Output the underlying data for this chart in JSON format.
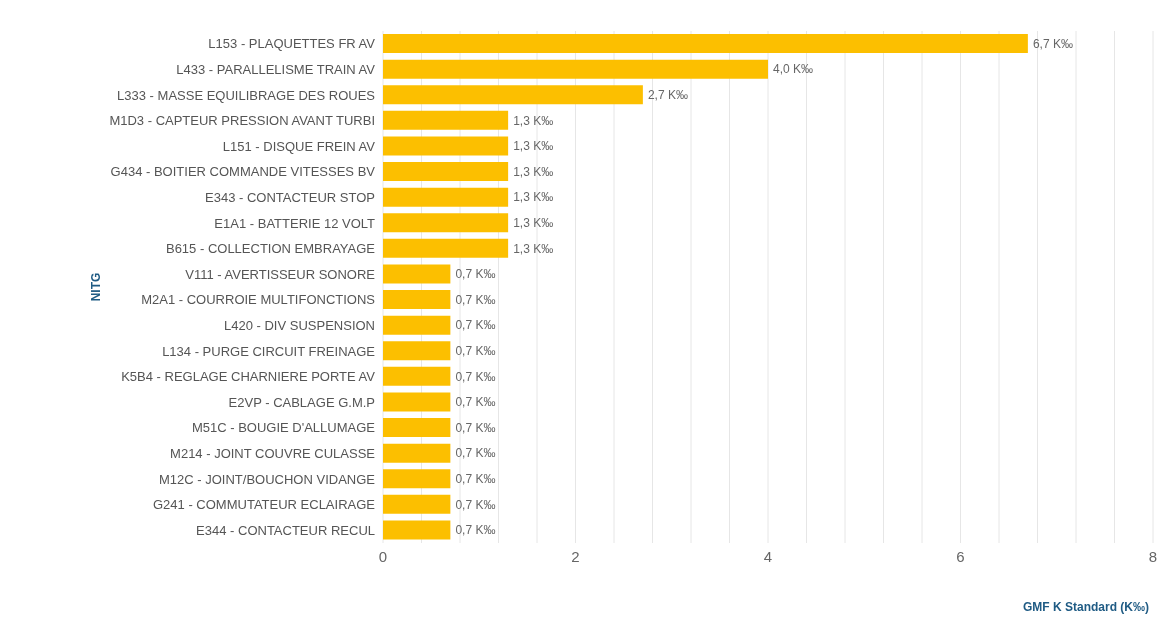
{
  "chart_data": {
    "type": "bar",
    "orientation": "horizontal",
    "xlabel": "GMF K Standard (K‰)",
    "ylabel": "NITG",
    "categories": [
      "L153 - PLAQUETTES FR AV",
      "L433 - PARALLELISME TRAIN AV",
      "L333 - MASSE EQUILIBRAGE DES ROUES",
      "M1D3 - CAPTEUR PRESSION AVANT TURBI",
      "L151 - DISQUE FREIN AV",
      "G434 - BOITIER COMMANDE VITESSES BV",
      "E343 - CONTACTEUR  STOP",
      "E1A1 - BATTERIE 12 VOLT",
      "B615 - COLLECTION EMBRAYAGE",
      "V111 - AVERTISSEUR SONORE",
      "M2A1 - COURROIE MULTIFONCTIONS",
      "L420 - DIV SUSPENSION",
      "L134 - PURGE CIRCUIT FREINAGE",
      "K5B4 - REGLAGE CHARNIERE PORTE AV",
      "E2VP - CABLAGE G.M.P",
      "M51C - BOUGIE D'ALLUMAGE",
      "M214 - JOINT COUVRE CULASSE",
      "M12C - JOINT/BOUCHON VIDANGE",
      "G241 - COMMUTATEUR ECLAIRAGE",
      "E344 - CONTACTEUR RECUL"
    ],
    "values": [
      6.7,
      4.0,
      2.7,
      1.3,
      1.3,
      1.3,
      1.3,
      1.3,
      1.3,
      0.7,
      0.7,
      0.7,
      0.7,
      0.7,
      0.7,
      0.7,
      0.7,
      0.7,
      0.7,
      0.7
    ],
    "value_labels": [
      "6,7 K‰",
      "4,0 K‰",
      "2,7 K‰",
      "1,3 K‰",
      "1,3 K‰",
      "1,3 K‰",
      "1,3 K‰",
      "1,3 K‰",
      "1,3 K‰",
      "0,7 K‰",
      "0,7 K‰",
      "0,7 K‰",
      "0,7 K‰",
      "0,7 K‰",
      "0,7 K‰",
      "0,7 K‰",
      "0,7 K‰",
      "0,7 K‰",
      "0,7 K‰",
      "0,7 K‰"
    ],
    "color": "#fcbf00",
    "xlim": [
      0,
      8
    ],
    "xticks": [
      0,
      {
        "value": 0.4,
        "label": null
      },
      {
        "value": 0.8,
        "label": null
      },
      {
        "value": 1.2,
        "label": null
      },
      {
        "value": 1.6,
        "label": null
      },
      2,
      {
        "value": 2.4,
        "label": null
      },
      {
        "value": 2.8,
        "label": null
      },
      {
        "value": 3.2,
        "label": null
      },
      {
        "value": 3.6,
        "label": null
      },
      4,
      {
        "value": 4.4,
        "label": null
      },
      {
        "value": 4.8,
        "label": null
      },
      {
        "value": 5.2,
        "label": null
      },
      {
        "value": 5.6,
        "label": null
      },
      6,
      {
        "value": 6.4,
        "label": null
      },
      {
        "value": 6.8,
        "label": null
      },
      {
        "value": 7.2,
        "label": null
      },
      {
        "value": 7.6,
        "label": null
      },
      8
    ],
    "grid": "x",
    "legend": false
  }
}
